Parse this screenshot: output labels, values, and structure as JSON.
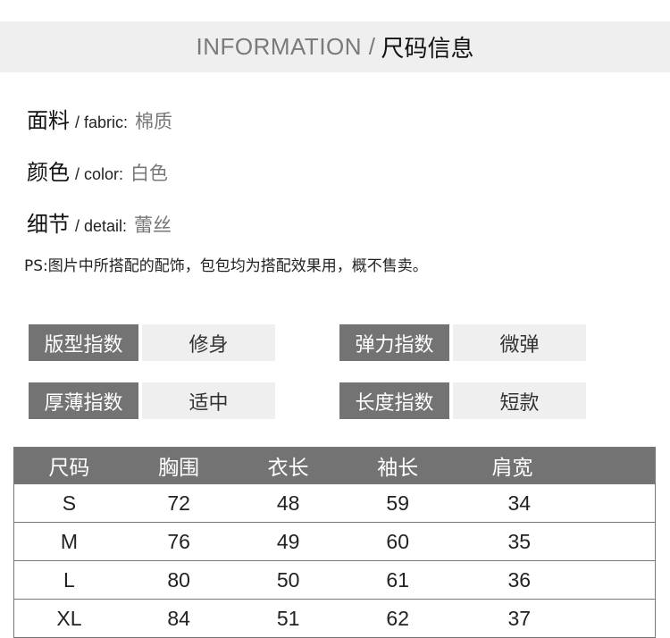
{
  "header": {
    "title_en": "INFORMATION /",
    "title_cn": "尺码信息"
  },
  "attributes": [
    {
      "label": "面料",
      "en": "/ fabric:",
      "value": "棉质"
    },
    {
      "label": "颜色",
      "en": "/ color:",
      "value": "白色"
    },
    {
      "label": "细节",
      "en": "/ detail:",
      "value": "蕾丝"
    }
  ],
  "note": "PS:图片中所搭配的配饰，包包均为搭配效果用，概不售卖。",
  "indices": [
    {
      "label": "版型指数",
      "value": "修身"
    },
    {
      "label": "弹力指数",
      "value": "微弹"
    },
    {
      "label": "厚薄指数",
      "value": "适中"
    },
    {
      "label": "长度指数",
      "value": "短款"
    }
  ],
  "size_table": {
    "headers": [
      "尺码",
      "胸围",
      "衣长",
      "袖长",
      "肩宽"
    ],
    "rows": [
      [
        "S",
        "72",
        "48",
        "59",
        "34"
      ],
      [
        "M",
        "76",
        "49",
        "60",
        "35"
      ],
      [
        "L",
        "80",
        "50",
        "61",
        "36"
      ],
      [
        "XL",
        "84",
        "51",
        "62",
        "37"
      ]
    ]
  },
  "colors": {
    "dark": "#737373",
    "light": "#efefef"
  }
}
